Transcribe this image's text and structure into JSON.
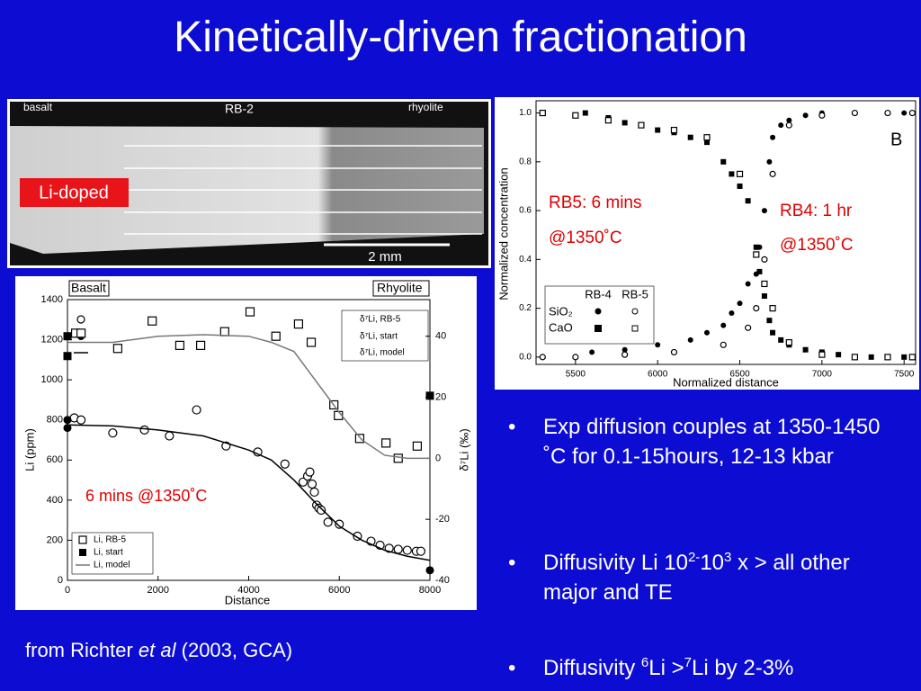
{
  "title": "Kinetically-driven fractionation",
  "photo": {
    "labels": [
      "basalt",
      "RB-2",
      "rhyolite"
    ],
    "tag": "Li-doped",
    "scale": "2 mm"
  },
  "chart_data": [
    {
      "type": "scatter",
      "labels": [
        "Basalt",
        "Rhyolite"
      ],
      "annotation": "6 mins @1350˚C",
      "xlabel": "Distance",
      "ylabel": "Li (ppm)",
      "y2label": "δ⁷Li (‰)",
      "xlim": [
        0,
        8000
      ],
      "xticks": [
        0,
        2000,
        4000,
        6000,
        8000
      ],
      "ylim": [
        0,
        1400
      ],
      "yticks": [
        0,
        200,
        400,
        600,
        800,
        1000,
        1200,
        1400
      ],
      "y2lim": [
        -40,
        52
      ],
      "y2ticks": [
        -40,
        -20,
        0,
        20,
        40
      ],
      "series": [
        {
          "name": "Li, RB-5",
          "marker": "open-circle",
          "color": "#000000",
          "x": [
            150,
            300,
            1000,
            1700,
            2250,
            2850,
            3500,
            4200,
            4800,
            5200,
            5300,
            5350,
            5400,
            5450,
            5500,
            5550,
            5600,
            5750,
            6000,
            6400,
            6700,
            6900,
            7100,
            7300,
            7500,
            7700,
            7800
          ],
          "values": [
            810,
            800,
            735,
            750,
            720,
            850,
            670,
            640,
            580,
            490,
            520,
            540,
            480,
            440,
            375,
            360,
            350,
            290,
            280,
            220,
            195,
            175,
            160,
            155,
            150,
            145,
            145
          ]
        },
        {
          "name": "Li, start",
          "marker": "filled-circle",
          "color": "#000000",
          "x": [
            0,
            0,
            8000
          ],
          "values": [
            800,
            760,
            50
          ]
        },
        {
          "name": "Li, model",
          "marker": "line",
          "color": "#000000",
          "x": [
            0,
            1000,
            2000,
            3000,
            4000,
            4500,
            5000,
            5500,
            6000,
            6500,
            7000,
            7500,
            8000
          ],
          "values": [
            775,
            770,
            750,
            720,
            650,
            600,
            500,
            380,
            270,
            200,
            150,
            120,
            100
          ]
        },
        {
          "name": "δ⁷Li, RB-5",
          "marker": "open-square",
          "color": "#000000",
          "axis": "y2",
          "x": [
            180,
            300,
            1110,
            1870,
            2480,
            2940,
            3470,
            4030,
            4600,
            5100,
            5380,
            5880,
            5980,
            6450,
            7030,
            7300,
            7720
          ],
          "values": [
            41,
            41,
            36,
            45,
            37,
            37,
            41.5,
            48,
            40,
            44,
            38,
            17.5,
            14,
            6.5,
            5,
            0,
            4
          ]
        },
        {
          "name": "δ⁷Li, start",
          "marker": "filled-square",
          "color": "#000000",
          "axis": "y2",
          "x": [
            0,
            0,
            8000
          ],
          "values": [
            40,
            33.5,
            20.5
          ]
        },
        {
          "name": "δ⁷Li, model",
          "marker": "line",
          "color": "#777777",
          "axis": "y2",
          "x": [
            0,
            1000,
            2000,
            3000,
            4000,
            4500,
            5000,
            5500,
            6000,
            6500,
            7000,
            7500,
            8000
          ],
          "values": [
            38,
            38,
            40,
            40.5,
            40,
            38,
            35,
            25,
            15,
            6,
            1,
            0,
            0
          ]
        }
      ]
    },
    {
      "type": "scatter",
      "panel": "B",
      "annotations": [
        "RB5: 6 mins",
        "@1350˚C",
        "RB4: 1 hr",
        "@1350˚C"
      ],
      "xlabel": "Normalized distance",
      "ylabel": "Normalized concentration",
      "legend": {
        "columns": [
          "RB-4",
          "RB-5"
        ],
        "rows": [
          "SiO₂",
          "CaO"
        ]
      },
      "xlim": [
        5260,
        7570
      ],
      "xticks": [
        5500,
        6000,
        6500,
        7000,
        7500
      ],
      "ylim": [
        -0.03,
        1.05
      ],
      "yticks": [
        {
          "value": 0,
          "label": "0.0"
        },
        0.2,
        0.4,
        0.6,
        0.8,
        {
          "value": 1,
          "label": "1.0"
        }
      ],
      "series": [
        {
          "marker": "filled-square",
          "color": "#000000",
          "x": [
            5560,
            5700,
            5800,
            5900,
            6000,
            6100,
            6200,
            6300,
            6400,
            6450,
            6500,
            6550,
            6600,
            6620,
            6650,
            6680,
            6700,
            6750,
            6800,
            6900,
            7000,
            7100,
            7200,
            7300,
            7400,
            7500
          ],
          "values": [
            1.0,
            0.98,
            0.96,
            0.95,
            0.93,
            0.92,
            0.9,
            0.88,
            0.8,
            0.75,
            0.7,
            0.64,
            0.45,
            0.35,
            0.25,
            0.15,
            0.1,
            0.07,
            0.05,
            0.03,
            0.02,
            0.01,
            0.0,
            0.0,
            0.0,
            0.0
          ]
        },
        {
          "marker": "open-square",
          "color": "#000000",
          "x": [
            5300,
            5500,
            5700,
            5900,
            6100,
            6300,
            6500,
            6600,
            6650,
            6700,
            6800,
            7000,
            7200,
            7400,
            7550
          ],
          "values": [
            1.0,
            0.99,
            0.97,
            0.95,
            0.93,
            0.9,
            0.75,
            0.42,
            0.3,
            0.2,
            0.06,
            0.01,
            0.0,
            0.0,
            0.0
          ]
        },
        {
          "marker": "filled-circle",
          "color": "#000000",
          "x": [
            5600,
            5800,
            6000,
            6200,
            6300,
            6400,
            6450,
            6500,
            6550,
            6600,
            6620,
            6650,
            6680,
            6700,
            6750,
            6800,
            6900,
            7000,
            7200,
            7400,
            7500
          ],
          "values": [
            0.02,
            0.03,
            0.05,
            0.07,
            0.1,
            0.13,
            0.18,
            0.22,
            0.3,
            0.34,
            0.45,
            0.6,
            0.8,
            0.9,
            0.95,
            0.97,
            0.99,
            1.0,
            1.0,
            1.0,
            1.0
          ]
        },
        {
          "marker": "open-circle",
          "color": "#000000",
          "x": [
            5300,
            5500,
            5800,
            6100,
            6400,
            6550,
            6600,
            6650,
            6700,
            6800,
            7000,
            7200,
            7400,
            7550
          ],
          "values": [
            0.0,
            0.0,
            0.01,
            0.02,
            0.05,
            0.12,
            0.2,
            0.4,
            0.75,
            0.95,
            0.99,
            1.0,
            1.0,
            1.0
          ]
        }
      ]
    }
  ],
  "bullets": [
    [
      "Exp diffusion couples at 1350-1450 ˚C for 0.1-15hours, 12-13 kbar"
    ],
    [
      "Diffusivity Li 10",
      "2-",
      "10",
      "3",
      " x > all other major and TE"
    ],
    [
      "Diffusivity ",
      "6",
      "Li >",
      "7",
      "Li by 2-3%"
    ]
  ],
  "citation": [
    "from Richter ",
    "et al",
    " (2003, GCA)"
  ]
}
